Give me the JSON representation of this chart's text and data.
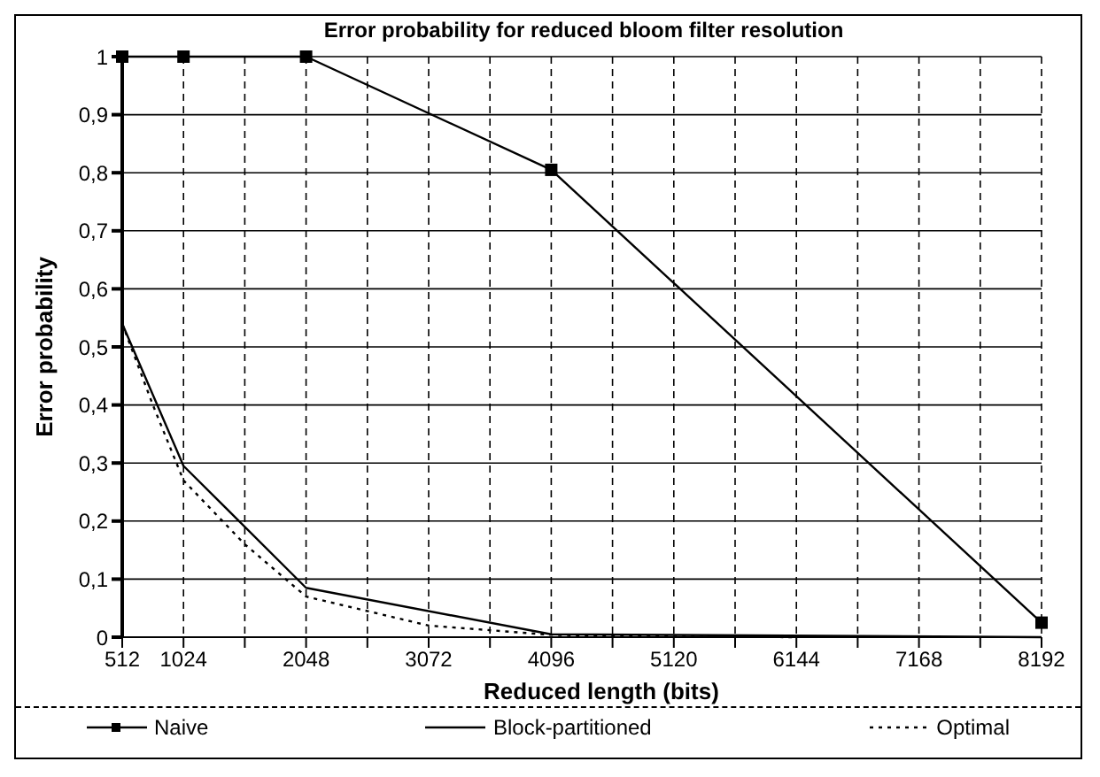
{
  "chart_data": {
    "type": "line",
    "title": "Error probability for reduced bloom filter resolution",
    "xlabel": "Reduced length (bits)",
    "ylabel": "Error probability",
    "xlim": [
      512,
      8192
    ],
    "xticks": [
      512,
      1024,
      {
        "value": 1536,
        "label": null
      },
      2048,
      {
        "value": 2560,
        "label": null
      },
      3072,
      {
        "value": 3584,
        "label": null
      },
      4096,
      {
        "value": 4608,
        "label": null
      },
      5120,
      {
        "value": 5632,
        "label": null
      },
      6144,
      {
        "value": 6656,
        "label": null
      },
      7168,
      {
        "value": 7680,
        "label": null
      },
      8192
    ],
    "ylim": [
      0,
      1
    ],
    "yticks": [
      0,
      {
        "value": 0.1,
        "label": "0,1"
      },
      {
        "value": 0.2,
        "label": "0,2"
      },
      {
        "value": 0.3,
        "label": "0,3"
      },
      {
        "value": 0.4,
        "label": "0,4"
      },
      {
        "value": 0.5,
        "label": "0,5"
      },
      {
        "value": 0.6,
        "label": "0,6"
      },
      {
        "value": 0.7,
        "label": "0,7"
      },
      {
        "value": 0.8,
        "label": "0,8"
      },
      {
        "value": 0.9,
        "label": "0,9"
      },
      1
    ],
    "grid": true,
    "legend": "bottom",
    "series": [
      {
        "name": "Naive",
        "color": "#000000",
        "marker": "square",
        "line_style": "solid",
        "x": [
          512,
          1024,
          2048,
          4096,
          8192
        ],
        "values": [
          1,
          1,
          1,
          0.805,
          0.025
        ]
      },
      {
        "name": "Block-partitioned",
        "color": "#000000",
        "marker": "none",
        "line_style": "solid",
        "x": [
          512,
          1024,
          2048,
          4096,
          8192
        ],
        "values": [
          0.54,
          0.295,
          0.085,
          0.005,
          0
        ]
      },
      {
        "name": "Optimal",
        "color": "#000000",
        "marker": "none",
        "line_style": "dotted",
        "x": [
          512,
          768,
          1024,
          1536,
          2048,
          3072,
          4096,
          5120,
          6144
        ],
        "values": [
          0.54,
          0.4,
          0.27,
          0.16,
          0.07,
          0.02,
          0.004,
          0.001,
          0
        ]
      }
    ]
  }
}
